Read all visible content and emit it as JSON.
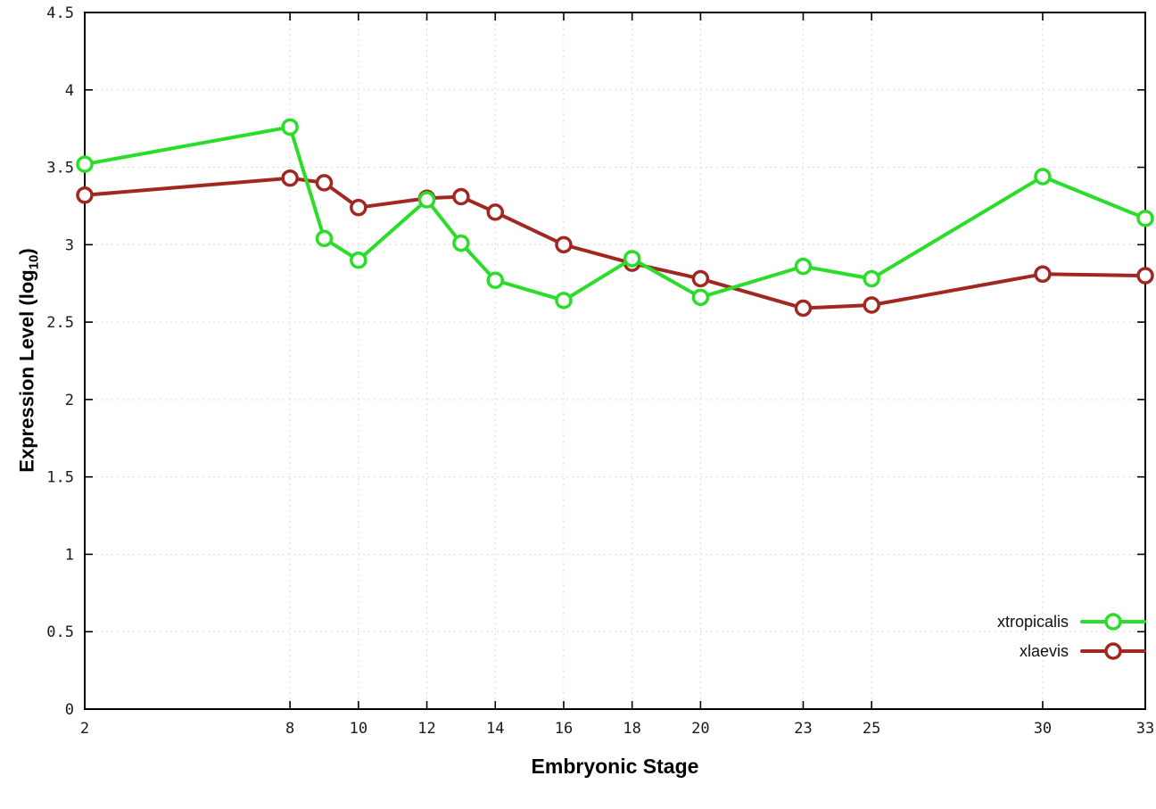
{
  "chart_data": {
    "type": "line",
    "title": "",
    "xlabel": "Embryonic Stage",
    "ylabel_prefix": "Expression Level (log",
    "ylabel_sub": "10",
    "ylabel_suffix": ")",
    "xlim": [
      2,
      33
    ],
    "ylim": [
      0,
      4.5
    ],
    "grid": true,
    "legend_position": "bottom-right",
    "x": [
      2,
      8,
      9,
      10,
      12,
      13,
      14,
      16,
      18,
      20,
      23,
      25,
      30,
      33
    ],
    "xticks": [
      {
        "v": 2,
        "label": "2"
      },
      {
        "v": 8,
        "label": "8"
      },
      {
        "v": 10,
        "label": "10"
      },
      {
        "v": 12,
        "label": "12"
      },
      {
        "v": 14,
        "label": "14"
      },
      {
        "v": 16,
        "label": "16"
      },
      {
        "v": 18,
        "label": "18"
      },
      {
        "v": 20,
        "label": "20"
      },
      {
        "v": 23,
        "label": "23"
      },
      {
        "v": 25,
        "label": "25"
      },
      {
        "v": 30,
        "label": "30"
      },
      {
        "v": 33,
        "label": "33"
      }
    ],
    "yticks": [
      {
        "v": 0,
        "label": "0"
      },
      {
        "v": 0.5,
        "label": "0.5"
      },
      {
        "v": 1,
        "label": "1"
      },
      {
        "v": 1.5,
        "label": "1.5"
      },
      {
        "v": 2,
        "label": "2"
      },
      {
        "v": 2.5,
        "label": "2.5"
      },
      {
        "v": 3,
        "label": "3"
      },
      {
        "v": 3.5,
        "label": "3.5"
      },
      {
        "v": 4,
        "label": "4"
      },
      {
        "v": 4.5,
        "label": "4.5"
      }
    ],
    "series": [
      {
        "name": "xtropicalis",
        "color": "#29dd29",
        "values": [
          3.52,
          3.76,
          3.04,
          2.9,
          3.29,
          3.01,
          2.77,
          2.64,
          2.91,
          2.66,
          2.86,
          2.78,
          3.44,
          3.17
        ]
      },
      {
        "name": "xlaevis",
        "color": "#a02820",
        "values": [
          3.32,
          3.43,
          3.4,
          3.24,
          3.3,
          3.31,
          3.21,
          3.0,
          2.88,
          2.78,
          2.59,
          2.61,
          2.81,
          2.8
        ]
      }
    ]
  }
}
